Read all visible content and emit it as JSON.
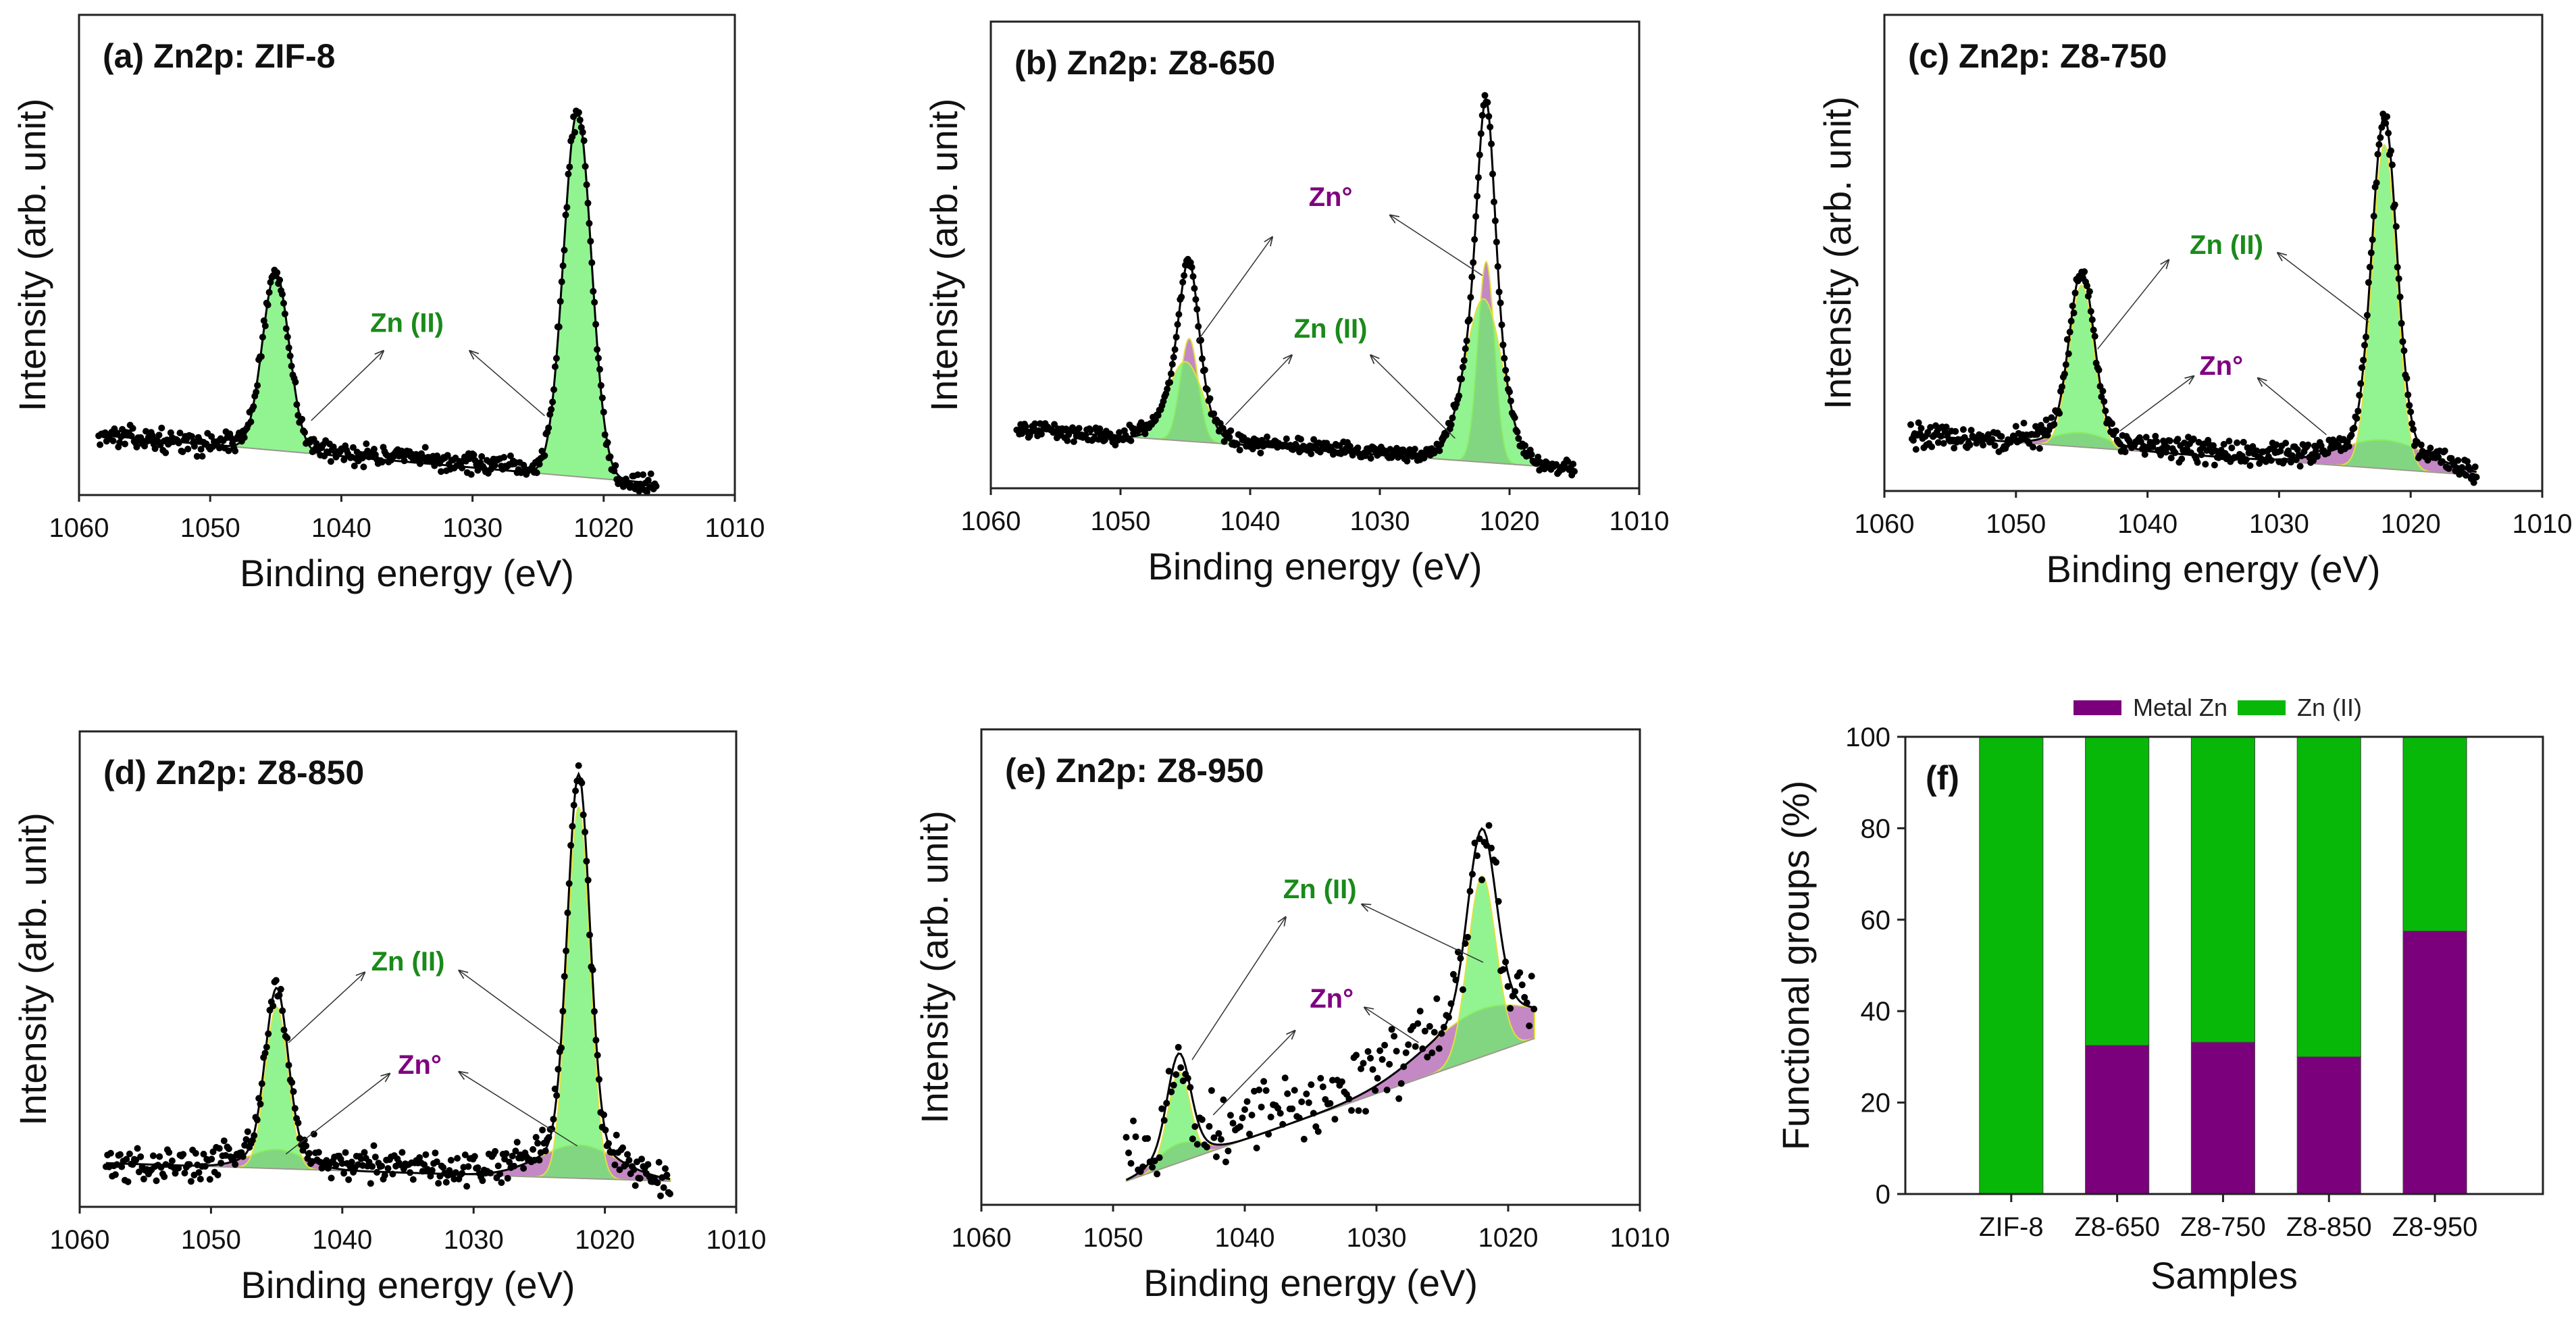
{
  "colors": {
    "zn2_fill": "#6cf06c",
    "zn2_edge": "#e0e040",
    "zn0_fill": "#b060b0",
    "fit_line": "#000000",
    "points": "#000000",
    "zn2_label": "#1a8a1a",
    "zn0_label": "#800080",
    "bar_metal": "#7b007b",
    "bar_zn2": "#08b808"
  },
  "chart_data": [
    {
      "type": "line",
      "panel": "a",
      "title": "(a) Zn2p: ZIF-8",
      "xlabel": "Binding energy (eV)",
      "ylabel": "Intensity (arb. unit)",
      "xlim": [
        1060,
        1010
      ],
      "ylim": [
        0,
        100
      ],
      "xticks": [
        "1060",
        "1050",
        "1040",
        "1030",
        "1020",
        "1010"
      ],
      "data_range": [
        1058.5,
        1016
      ],
      "background": [
        12.5,
        2.4
      ],
      "noise": 1.3,
      "step": 0.1,
      "components": [
        {
          "label": "Zn (II)",
          "kind": "zn2",
          "center": 1045,
          "height": 37,
          "fwhm": 2.4
        },
        {
          "label": "Zn (II)",
          "kind": "zn2",
          "center": 1022,
          "height": 76,
          "fwhm": 2.5
        }
      ],
      "annotations": [
        {
          "text": "Zn (II)",
          "kind": "zn2"
        }
      ]
    },
    {
      "type": "line",
      "panel": "b",
      "title": "(b) Zn2p: Z8-650",
      "xlabel": "Binding energy (eV)",
      "ylabel": "Intensity (arb. unit)",
      "xlim": [
        1060,
        1010
      ],
      "ylim": [
        0,
        100
      ],
      "xticks": [
        "1060",
        "1050",
        "1040",
        "1030",
        "1020",
        "1010"
      ],
      "data_range": [
        1058,
        1015
      ],
      "background": [
        12.7,
        4.2
      ],
      "noise": 1.0,
      "step": 0.1,
      "components": [
        {
          "label": "Zn (II)",
          "kind": "zn2",
          "center": 1045,
          "height": 17,
          "fwhm": 3.2
        },
        {
          "label": "Zn°",
          "kind": "zn0",
          "center": 1044.7,
          "height": 22,
          "fwhm": 1.6
        },
        {
          "label": "Zn (II)",
          "kind": "zn2",
          "center": 1022,
          "height": 35,
          "fwhm": 3.4
        },
        {
          "label": "Zn°",
          "kind": "zn0",
          "center": 1021.8,
          "height": 43,
          "fwhm": 1.5
        }
      ],
      "annotations": [
        {
          "text": "Zn°",
          "kind": "zn0"
        },
        {
          "text": "Zn (II)",
          "kind": "zn2"
        }
      ]
    },
    {
      "type": "line",
      "panel": "c",
      "title": "(c) Zn2p: Z8-750",
      "xlabel": "Binding energy (eV)",
      "ylabel": "Intensity (arb. unit)",
      "xlim": [
        1060,
        1010
      ],
      "ylim": [
        0,
        100
      ],
      "xticks": [
        "1060",
        "1050",
        "1040",
        "1030",
        "1020",
        "1010"
      ],
      "data_range": [
        1058,
        1015
      ],
      "background": [
        11.8,
        3.3
      ],
      "noise": 1.6,
      "step": 0.1,
      "components": [
        {
          "label": "Zn°",
          "kind": "zn0",
          "center": 1045,
          "height": 3,
          "fwhm": 5
        },
        {
          "label": "Zn (II)",
          "kind": "zn2",
          "center": 1045,
          "height": 34,
          "fwhm": 2.2
        },
        {
          "label": "Zn°",
          "kind": "zn0",
          "center": 1022,
          "height": 6,
          "fwhm": 8
        },
        {
          "label": "Zn (II)",
          "kind": "zn2",
          "center": 1022,
          "height": 68,
          "fwhm": 2.2
        }
      ],
      "annotations": [
        {
          "text": "Zn (II)",
          "kind": "zn2"
        },
        {
          "text": "Zn°",
          "kind": "zn0"
        }
      ]
    },
    {
      "type": "line",
      "panel": "d",
      "title": "(d) Zn2p: Z8-850",
      "xlabel": "Binding energy (eV)",
      "ylabel": "Intensity (arb. unit)",
      "xlim": [
        1060,
        1010
      ],
      "ylim": [
        0,
        100
      ],
      "xticks": [
        "1060",
        "1050",
        "1040",
        "1030",
        "1020",
        "1010"
      ],
      "data_range": [
        1058,
        1015
      ],
      "background": [
        9.2,
        5.4
      ],
      "noise": 2.2,
      "step": 0.12,
      "components": [
        {
          "label": "Zn°",
          "kind": "zn0",
          "center": 1045,
          "height": 4,
          "fwhm": 5
        },
        {
          "label": "Zn (II)",
          "kind": "zn2",
          "center": 1045,
          "height": 34,
          "fwhm": 2.0
        },
        {
          "label": "Zn°",
          "kind": "zn0",
          "center": 1022,
          "height": 7,
          "fwhm": 7
        },
        {
          "label": "Zn (II)",
          "kind": "zn2",
          "center": 1022,
          "height": 78,
          "fwhm": 2.0
        }
      ],
      "annotations": [
        {
          "text": "Zn (II)",
          "kind": "zn2"
        },
        {
          "text": "Zn°",
          "kind": "zn0"
        }
      ]
    },
    {
      "type": "line",
      "panel": "e",
      "title": "(e) Zn2p: Z8-950",
      "xlabel": "Binding energy (eV)",
      "ylabel": "Intensity (arb. unit)",
      "xlim": [
        1060,
        1010
      ],
      "ylim": [
        0,
        100
      ],
      "xticks": [
        "1060",
        "1050",
        "1040",
        "1030",
        "1020",
        "1010"
      ],
      "data_range": [
        1049,
        1018
      ],
      "background": [
        5,
        35
      ],
      "noise": 5,
      "step": 0.18,
      "components": [
        {
          "label": "Zn°",
          "kind": "zn0",
          "center": 1045,
          "height": 4,
          "fwhm": 4
        },
        {
          "label": "Zn (II)",
          "kind": "zn2",
          "center": 1045,
          "height": 19,
          "fwhm": 2.0
        },
        {
          "label": "Zn°",
          "kind": "zn0",
          "center": 1022,
          "height": 10,
          "fwhm": 10
        },
        {
          "label": "Zn (II)",
          "kind": "zn2",
          "center": 1022,
          "height": 38,
          "fwhm": 2.5
        }
      ],
      "annotations": [
        {
          "text": "Zn (II)",
          "kind": "zn2"
        },
        {
          "text": "Zn°",
          "kind": "zn0"
        }
      ]
    },
    {
      "type": "bar",
      "panel": "f",
      "stacked": true,
      "title": "(f)",
      "xlabel": "Samples",
      "ylabel": "Functional groups (%)",
      "ylim": [
        0,
        100
      ],
      "yticks": [
        "0",
        "20",
        "40",
        "60",
        "80",
        "100"
      ],
      "categories": [
        "ZIF-8",
        "Z8-650",
        "Z8-750",
        "Z8-850",
        "Z8-950"
      ],
      "legend_position": "top-center",
      "series": [
        {
          "name": "Metal Zn",
          "values": [
            0,
            32.5,
            33.2,
            30.0,
            57.5
          ]
        },
        {
          "name": "Zn (II)",
          "values": [
            100,
            67.5,
            66.8,
            70.0,
            42.5
          ]
        }
      ]
    }
  ]
}
